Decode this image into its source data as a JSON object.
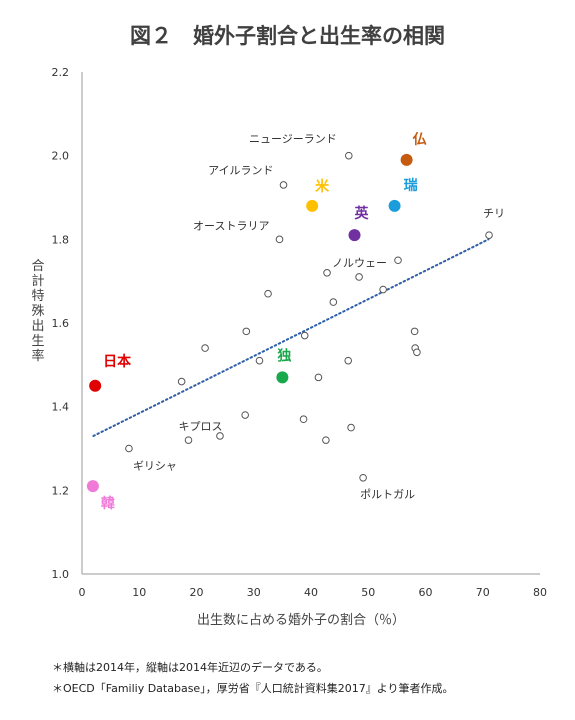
{
  "title": "図２　婚外子割合と出生率の相関",
  "notes": [
    "＊横軸は2014年，縦軸は2014年近辺のデータである。",
    "＊OECD「Familiy Database」，厚労省『人口統計資料集2017』より筆者作成。"
  ],
  "chart_data": {
    "type": "scatter",
    "title": "図２　婚外子割合と出生率の相関",
    "xlabel": "出生数に占める婚外子の割合（％）",
    "ylabel": "合計特殊出生率",
    "xlim": [
      0,
      80
    ],
    "ylim": [
      1.0,
      2.2
    ],
    "xticks": [
      "0",
      "10",
      "20",
      "30",
      "40",
      "50",
      "60",
      "70",
      "80"
    ],
    "yticks": [
      "1.0",
      "1.2",
      "1.4",
      "1.6",
      "1.8",
      "2.0",
      "2.2"
    ],
    "grid": false,
    "trendline": {
      "style": "dotted",
      "color": "#2e5fa8",
      "x": [
        2,
        71
      ],
      "y": [
        1.33,
        1.8
      ]
    },
    "highlighted": [
      {
        "label": "日本",
        "x": 2.3,
        "y": 1.45,
        "color": "#e00000"
      },
      {
        "label": "韓",
        "x": 1.9,
        "y": 1.21,
        "color": "#f07ad8"
      },
      {
        "label": "独",
        "x": 35.0,
        "y": 1.47,
        "color": "#1aa84c"
      },
      {
        "label": "米",
        "x": 40.2,
        "y": 1.88,
        "color": "#ffc000"
      },
      {
        "label": "英",
        "x": 47.6,
        "y": 1.81,
        "color": "#7030a0"
      },
      {
        "label": "瑞",
        "x": 54.6,
        "y": 1.88,
        "color": "#1c9ddb"
      },
      {
        "label": "仏",
        "x": 56.7,
        "y": 1.99,
        "color": "#c55a11"
      }
    ],
    "named_points": [
      {
        "label": "ニュージーランド",
        "x": 46.6,
        "y": 2.0
      },
      {
        "label": "アイルランド",
        "x": 35.2,
        "y": 1.93
      },
      {
        "label": "オーストラリア",
        "x": 34.5,
        "y": 1.8
      },
      {
        "label": "チリ",
        "x": 71.1,
        "y": 1.81
      },
      {
        "label": "ノルウェー",
        "x": 55.2,
        "y": 1.75
      },
      {
        "label": "キプロス",
        "x": 18.6,
        "y": 1.32
      },
      {
        "label": "ギリシャ",
        "x": 8.2,
        "y": 1.3
      },
      {
        "label": "ポルトガル",
        "x": 49.1,
        "y": 1.23
      }
    ],
    "other_points": [
      {
        "x": 42.8,
        "y": 1.72
      },
      {
        "x": 48.4,
        "y": 1.71
      },
      {
        "x": 52.6,
        "y": 1.68
      },
      {
        "x": 32.5,
        "y": 1.67
      },
      {
        "x": 43.9,
        "y": 1.65
      },
      {
        "x": 58.1,
        "y": 1.58
      },
      {
        "x": 28.7,
        "y": 1.58
      },
      {
        "x": 38.9,
        "y": 1.57
      },
      {
        "x": 21.5,
        "y": 1.54
      },
      {
        "x": 58.2,
        "y": 1.54
      },
      {
        "x": 58.5,
        "y": 1.53
      },
      {
        "x": 31.0,
        "y": 1.51
      },
      {
        "x": 46.5,
        "y": 1.51
      },
      {
        "x": 17.4,
        "y": 1.46
      },
      {
        "x": 41.3,
        "y": 1.47
      },
      {
        "x": 28.5,
        "y": 1.38
      },
      {
        "x": 38.7,
        "y": 1.37
      },
      {
        "x": 47.0,
        "y": 1.35
      },
      {
        "x": 24.1,
        "y": 1.33
      },
      {
        "x": 42.6,
        "y": 1.32
      }
    ]
  }
}
